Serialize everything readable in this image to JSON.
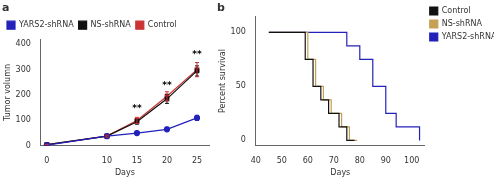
{
  "chart_data": [
    {
      "type": "line",
      "title": "a",
      "xlabel": "Days",
      "ylabel": "Tumor volumn",
      "x": [
        0,
        10,
        15,
        20,
        25
      ],
      "series": [
        {
          "name": "YARS2-shRNA",
          "color": "#2222bb",
          "marker": "circle",
          "values": [
            3,
            38,
            50,
            65,
            110
          ],
          "errors": [
            1,
            4,
            6,
            8,
            10
          ]
        },
        {
          "name": "NS-shRNA",
          "color": "#111111",
          "marker": "square",
          "values": [
            5,
            38,
            95,
            185,
            295
          ],
          "errors": [
            1,
            4,
            10,
            18,
            20
          ]
        },
        {
          "name": "Control",
          "color": "#cc3333",
          "marker": "square",
          "values": [
            5,
            38,
            100,
            195,
            300
          ],
          "errors": [
            1,
            4,
            12,
            18,
            28
          ]
        }
      ],
      "xlim": [
        -1,
        27
      ],
      "xticks": [
        0,
        10,
        15,
        20,
        25
      ],
      "ylim": [
        0,
        420
      ],
      "yticks": [
        0,
        100,
        200,
        300,
        400
      ],
      "annotations": [
        {
          "x": 15,
          "y": 128,
          "text": "**"
        },
        {
          "x": 20,
          "y": 218,
          "text": "**"
        },
        {
          "x": 25,
          "y": 340,
          "text": "**"
        }
      ],
      "legend": "upper left",
      "grid": false
    },
    {
      "type": "line",
      "line_style": "steps",
      "title": "b",
      "xlabel": "Days",
      "ylabel": "Percent survival",
      "series": [
        {
          "name": "Control",
          "color": "#111111",
          "x": [
            45,
            59,
            59,
            62,
            62,
            65,
            65,
            68,
            68,
            72,
            72,
            75,
            75,
            78,
            78
          ],
          "values": [
            100,
            100,
            75,
            75,
            50,
            50,
            37.5,
            37.5,
            25,
            25,
            12.5,
            12.5,
            0,
            0,
            0
          ]
        },
        {
          "name": "NS-shRNA",
          "color": "#c8a055",
          "x": [
            45,
            60,
            60,
            63,
            63,
            66,
            66,
            69,
            69,
            73,
            73,
            76,
            76,
            79,
            79
          ],
          "values": [
            100,
            100,
            75,
            75,
            50,
            50,
            37.5,
            37.5,
            25,
            25,
            12.5,
            12.5,
            0,
            0,
            0
          ]
        },
        {
          "name": "YARS2-shRNA",
          "color": "#2222bb",
          "x": [
            45,
            75,
            75,
            80,
            80,
            85,
            85,
            90,
            90,
            94,
            94,
            99,
            99,
            103,
            103
          ],
          "values": [
            100,
            100,
            87.5,
            87.5,
            75,
            75,
            50,
            50,
            25,
            25,
            12.5,
            12.5,
            12.5,
            12.5,
            0
          ]
        }
      ],
      "xlim": [
        40,
        105
      ],
      "xticks": [
        40,
        50,
        60,
        70,
        80,
        90,
        100
      ],
      "ylim": [
        -5,
        115
      ],
      "yticks": [
        0,
        50,
        100
      ],
      "legend": "right",
      "grid": false
    }
  ]
}
